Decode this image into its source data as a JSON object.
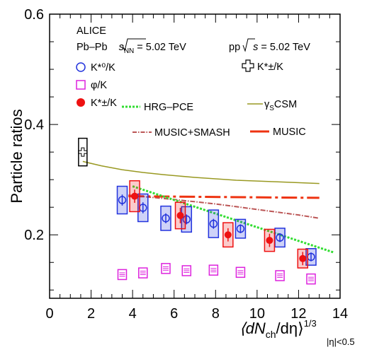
{
  "chart_data": {
    "type": "scatter",
    "title": "",
    "xlabel_parts": {
      "main": "⟨dN",
      "sub_ch": "ch",
      "mid": "/dη⟩",
      "sup": "1/3",
      "range": "|η|<0.5"
    },
    "ylabel": "Particle ratios",
    "xlim": [
      0,
      14
    ],
    "ylim": [
      0.085,
      0.6
    ],
    "x_ticks": [
      "0",
      "2",
      "4",
      "6",
      "8",
      "10",
      "12",
      "14"
    ],
    "y_ticks": [
      "0.2",
      "0.4",
      "0.6"
    ],
    "colors": {
      "kstar0": "#2233dd",
      "phi": "#dd22dd",
      "kstarpm": "#ee1111",
      "hrg": "#33dd33",
      "gsc": "#999922",
      "music_smash": "#bb5555",
      "music": "#ee3311",
      "pp": "#000000"
    },
    "legend": {
      "alice": "ALICE",
      "pbpb": "Pb–Pb",
      "sqrt": "s",
      "nn": "NN",
      "pbpb_energy": "= 5.02 TeV",
      "pp": "pp",
      "pp_energy": "= 5.02 TeV",
      "kstar0": "K*⁰/K",
      "phi": "φ/K",
      "kstarpm": "K*±/K",
      "pp_kstarpm": "K*±/K",
      "hrg": "HRG–PCE",
      "gsc_gamma": "γ",
      "gsc_sub": "S",
      "gsc_rest": "CSM",
      "music_smash": "MUSIC+SMASH",
      "music": "MUSIC"
    },
    "series": [
      {
        "name": "K*⁰/K",
        "x": [
          3.5,
          4.5,
          5.6,
          6.6,
          7.9,
          9.2,
          11.1,
          12.6
        ],
        "y": [
          0.263,
          0.249,
          0.23,
          0.228,
          0.22,
          0.211,
          0.195,
          0.16
        ],
        "sys": [
          0.025,
          0.025,
          0.022,
          0.023,
          0.025,
          0.017,
          0.017,
          0.015
        ],
        "stat": [
          0.01,
          0.01,
          0.009,
          0.009,
          0.009,
          0.008,
          0.008,
          0.008
        ]
      },
      {
        "name": "φ/K",
        "x": [
          3.5,
          4.5,
          5.6,
          6.6,
          7.9,
          9.2,
          11.1,
          12.6
        ],
        "y": [
          0.128,
          0.131,
          0.139,
          0.135,
          0.136,
          0.132,
          0.126,
          0.12
        ],
        "sys": [
          0.009,
          0.009,
          0.009,
          0.009,
          0.009,
          0.009,
          0.009,
          0.009
        ]
      },
      {
        "name": "K*±/K",
        "x": [
          4.1,
          6.3,
          8.6,
          10.6,
          12.2
        ],
        "y": [
          0.27,
          0.235,
          0.2,
          0.19,
          0.157
        ],
        "sys": [
          0.028,
          0.024,
          0.022,
          0.02,
          0.017
        ],
        "stat": [
          0.012,
          0.014,
          0.012,
          0.012,
          0.012
        ]
      },
      {
        "name": "pp K*±/K",
        "x": [
          1.6
        ],
        "y": [
          0.35
        ],
        "sys": [
          0.025
        ]
      }
    ],
    "models": [
      {
        "name": "HRG–PCE",
        "x": [
          4.0,
          13.7
        ],
        "y": [
          0.288,
          0.168
        ]
      },
      {
        "name": "γSCSM",
        "x": [
          1.6,
          2.5,
          3.5,
          4.5,
          5.5,
          7.0,
          9.0,
          11.0,
          13.0
        ],
        "y": [
          0.333,
          0.325,
          0.318,
          0.313,
          0.309,
          0.304,
          0.299,
          0.296,
          0.293
        ]
      },
      {
        "name": "MUSIC+SMASH",
        "x": [
          3.8,
          6.0,
          8.0,
          10.0,
          12.0,
          13.0
        ],
        "y": [
          0.272,
          0.264,
          0.256,
          0.246,
          0.236,
          0.23
        ]
      },
      {
        "name": "MUSIC",
        "x": [
          3.8,
          13.0
        ],
        "y": [
          0.27,
          0.267
        ]
      }
    ]
  }
}
